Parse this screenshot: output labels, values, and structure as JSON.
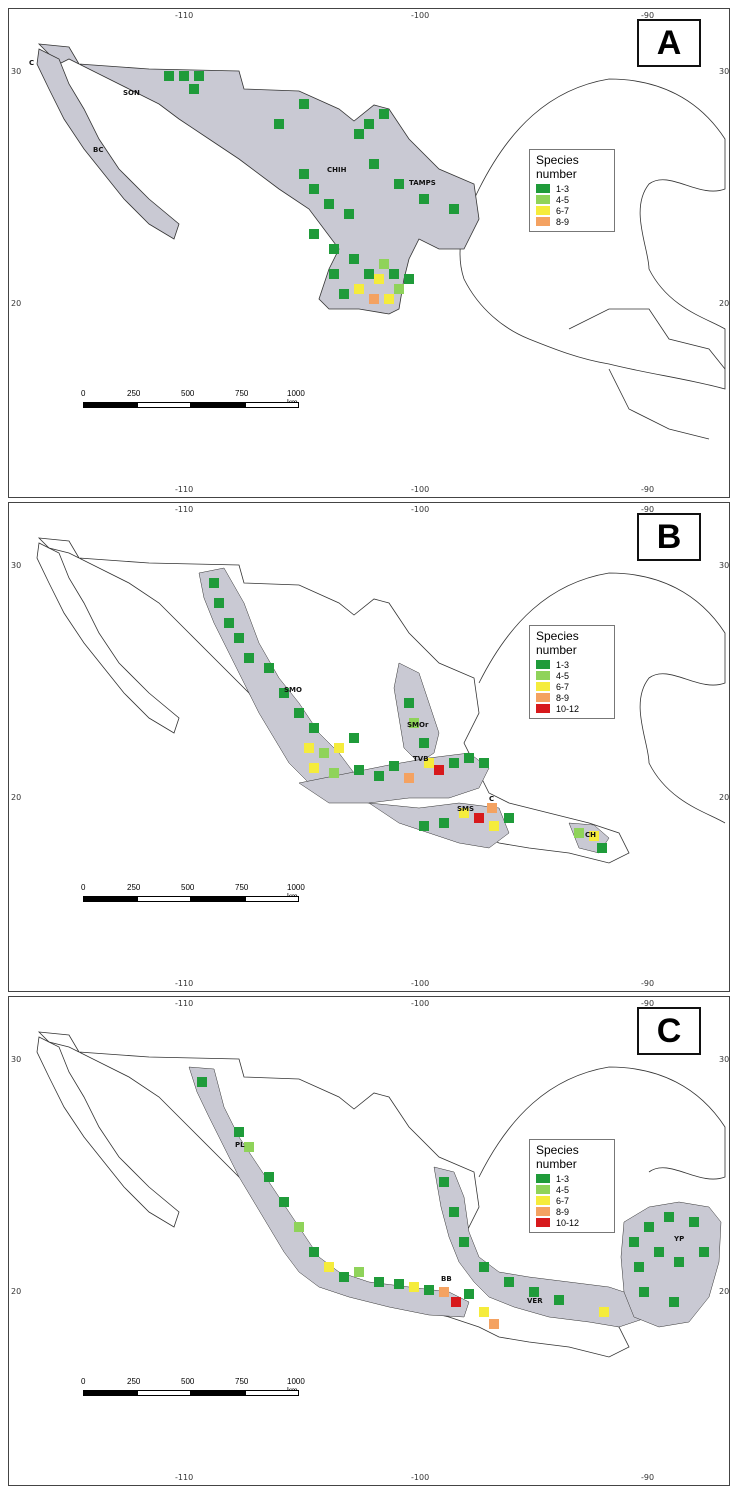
{
  "colors": {
    "land": "#c9c9d3",
    "cat1": "#1f9b3a",
    "cat2": "#8fd35a",
    "cat3": "#f5ec3c",
    "cat4": "#f4a261",
    "cat5": "#d7191c"
  },
  "axis": {
    "lon_labels": [
      "-110",
      "-100",
      "-90"
    ],
    "lat_labels": [
      "30",
      "20"
    ]
  },
  "scale_bar": {
    "labels": [
      "0",
      "250",
      "500",
      "750",
      "1000 km"
    ]
  },
  "panels": [
    {
      "letter": "A",
      "legend_title": "Species number",
      "legend_items": [
        "1-3",
        "4-5",
        "6-7",
        "8-9"
      ],
      "regions": [
        "C",
        "SON",
        "BC",
        "CHIH",
        "TAMPS"
      ]
    },
    {
      "letter": "B",
      "legend_title": "Species number",
      "legend_items": [
        "1-3",
        "4-5",
        "6-7",
        "8-9",
        "10-12"
      ],
      "regions": [
        "SMO",
        "SMOr",
        "TVB",
        "SMS",
        "CH",
        "C"
      ]
    },
    {
      "letter": "C",
      "legend_title": "Species number",
      "legend_items": [
        "1-3",
        "4-5",
        "6-7",
        "8-9",
        "10-12"
      ],
      "regions": [
        "PL",
        "YP",
        "BB",
        "VER"
      ]
    }
  ]
}
